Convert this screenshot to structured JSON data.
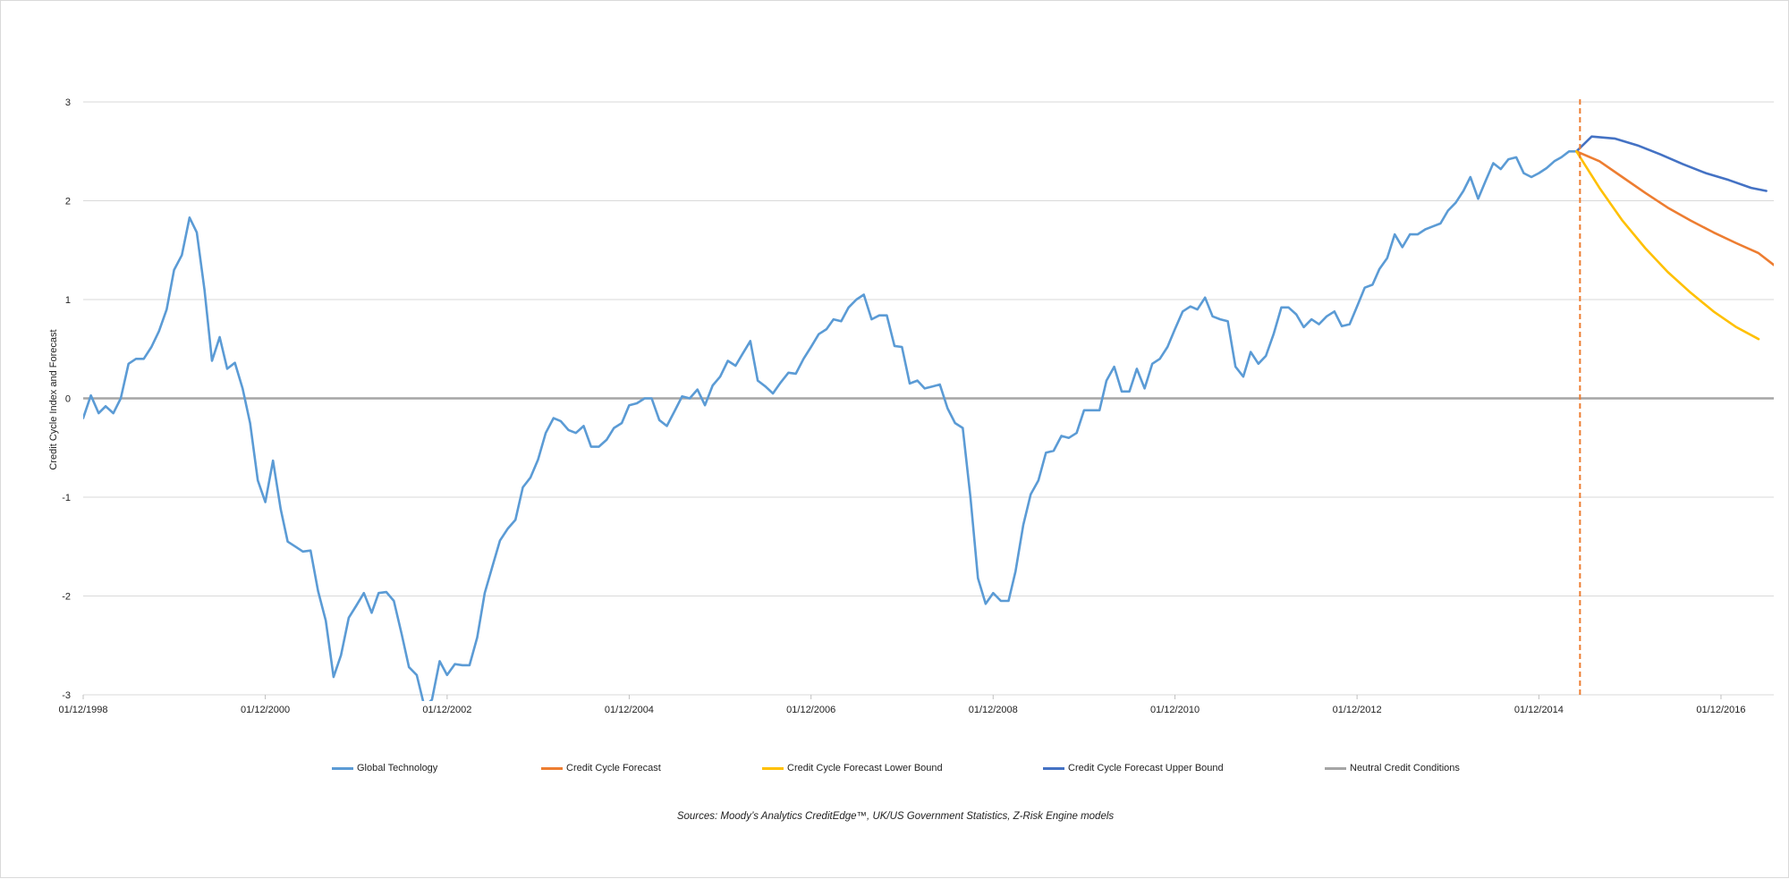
{
  "chart_data": {
    "type": "line",
    "ylabel": "Credit Cycle Index and Forecast",
    "ylim": [
      -3,
      3
    ],
    "y_ticks": [
      "3",
      "2",
      "1",
      "0",
      "-1",
      "-2",
      "-3"
    ],
    "x_range": [
      "1998-12-01",
      "2017-07-01"
    ],
    "x_ticks": [
      "01/12/1998",
      "01/12/2000",
      "01/12/2002",
      "01/12/2004",
      "01/12/2006",
      "01/12/2008",
      "01/12/2010",
      "01/12/2012",
      "01/12/2014",
      "01/12/2016"
    ],
    "grid": true,
    "legend_position": "bottom",
    "forecast_start": "2015-05-15",
    "series": [
      {
        "name": "Global Technology",
        "color": "#5B9BD5",
        "points": [
          [
            "1998-12-01",
            -0.2
          ],
          [
            "1999-01-01",
            0.03
          ],
          [
            "1999-02-01",
            -0.15
          ],
          [
            "1999-03-01",
            -0.08
          ],
          [
            "1999-04-01",
            -0.15
          ],
          [
            "1999-05-01",
            0.0
          ],
          [
            "1999-06-01",
            0.35
          ],
          [
            "1999-07-01",
            0.4
          ],
          [
            "1999-08-01",
            0.4
          ],
          [
            "1999-09-01",
            0.52
          ],
          [
            "1999-10-01",
            0.68
          ],
          [
            "1999-11-01",
            0.9
          ],
          [
            "1999-12-01",
            1.3
          ],
          [
            "2000-01-01",
            1.45
          ],
          [
            "2000-02-01",
            1.83
          ],
          [
            "2000-03-01",
            1.68
          ],
          [
            "2000-04-01",
            1.1
          ],
          [
            "2000-05-01",
            0.38
          ],
          [
            "2000-06-01",
            0.62
          ],
          [
            "2000-07-01",
            0.3
          ],
          [
            "2000-08-01",
            0.36
          ],
          [
            "2000-09-01",
            0.1
          ],
          [
            "2000-10-01",
            -0.25
          ],
          [
            "2000-11-01",
            -0.83
          ],
          [
            "2000-12-01",
            -1.05
          ],
          [
            "2001-01-01",
            -0.63
          ],
          [
            "2001-02-01",
            -1.12
          ],
          [
            "2001-03-01",
            -1.45
          ],
          [
            "2001-04-01",
            -1.5
          ],
          [
            "2001-05-01",
            -1.55
          ],
          [
            "2001-06-01",
            -1.54
          ],
          [
            "2001-07-01",
            -1.95
          ],
          [
            "2001-08-01",
            -2.25
          ],
          [
            "2001-09-01",
            -2.82
          ],
          [
            "2001-10-01",
            -2.6
          ],
          [
            "2001-11-01",
            -2.22
          ],
          [
            "2001-12-01",
            -2.1
          ],
          [
            "2002-01-01",
            -1.97
          ],
          [
            "2002-02-01",
            -2.17
          ],
          [
            "2002-03-01",
            -1.97
          ],
          [
            "2002-04-01",
            -1.96
          ],
          [
            "2002-05-01",
            -2.05
          ],
          [
            "2002-06-01",
            -2.38
          ],
          [
            "2002-07-01",
            -2.72
          ],
          [
            "2002-08-01",
            -2.8
          ],
          [
            "2002-09-01",
            -3.12
          ],
          [
            "2002-10-01",
            -3.05
          ],
          [
            "2002-11-01",
            -2.66
          ],
          [
            "2002-12-01",
            -2.8
          ],
          [
            "2003-01-01",
            -2.69
          ],
          [
            "2003-02-01",
            -2.7
          ],
          [
            "2003-03-01",
            -2.7
          ],
          [
            "2003-04-01",
            -2.42
          ],
          [
            "2003-05-01",
            -1.97
          ],
          [
            "2003-06-01",
            -1.7
          ],
          [
            "2003-07-01",
            -1.44
          ],
          [
            "2003-08-01",
            -1.32
          ],
          [
            "2003-09-01",
            -1.23
          ],
          [
            "2003-10-01",
            -0.9
          ],
          [
            "2003-11-01",
            -0.8
          ],
          [
            "2003-12-01",
            -0.62
          ],
          [
            "2004-01-01",
            -0.35
          ],
          [
            "2004-02-01",
            -0.2
          ],
          [
            "2004-03-01",
            -0.23
          ],
          [
            "2004-04-01",
            -0.32
          ],
          [
            "2004-05-01",
            -0.35
          ],
          [
            "2004-06-01",
            -0.28
          ],
          [
            "2004-07-01",
            -0.49
          ],
          [
            "2004-08-01",
            -0.49
          ],
          [
            "2004-09-01",
            -0.42
          ],
          [
            "2004-10-01",
            -0.3
          ],
          [
            "2004-11-01",
            -0.25
          ],
          [
            "2004-12-01",
            -0.07
          ],
          [
            "2005-01-01",
            -0.05
          ],
          [
            "2005-02-01",
            0.0
          ],
          [
            "2005-03-01",
            0.0
          ],
          [
            "2005-04-01",
            -0.22
          ],
          [
            "2005-05-01",
            -0.28
          ],
          [
            "2005-06-01",
            -0.13
          ],
          [
            "2005-07-01",
            0.02
          ],
          [
            "2005-08-01",
            0.0
          ],
          [
            "2005-09-01",
            0.09
          ],
          [
            "2005-10-01",
            -0.07
          ],
          [
            "2005-11-01",
            0.13
          ],
          [
            "2005-12-01",
            0.22
          ],
          [
            "2006-01-01",
            0.38
          ],
          [
            "2006-02-01",
            0.33
          ],
          [
            "2006-03-01",
            0.45
          ],
          [
            "2006-04-01",
            0.58
          ],
          [
            "2006-05-01",
            0.18
          ],
          [
            "2006-06-01",
            0.12
          ],
          [
            "2006-07-01",
            0.05
          ],
          [
            "2006-08-01",
            0.16
          ],
          [
            "2006-09-01",
            0.26
          ],
          [
            "2006-10-01",
            0.25
          ],
          [
            "2006-11-01",
            0.4
          ],
          [
            "2006-12-01",
            0.52
          ],
          [
            "2007-01-01",
            0.65
          ],
          [
            "2007-02-01",
            0.7
          ],
          [
            "2007-03-01",
            0.8
          ],
          [
            "2007-04-01",
            0.78
          ],
          [
            "2007-05-01",
            0.92
          ],
          [
            "2007-06-01",
            1.0
          ],
          [
            "2007-07-01",
            1.05
          ],
          [
            "2007-08-01",
            0.8
          ],
          [
            "2007-09-01",
            0.84
          ],
          [
            "2007-10-01",
            0.84
          ],
          [
            "2007-11-01",
            0.53
          ],
          [
            "2007-12-01",
            0.52
          ],
          [
            "2008-01-01",
            0.15
          ],
          [
            "2008-02-01",
            0.18
          ],
          [
            "2008-03-01",
            0.1
          ],
          [
            "2008-04-01",
            0.12
          ],
          [
            "2008-05-01",
            0.14
          ],
          [
            "2008-06-01",
            -0.1
          ],
          [
            "2008-07-01",
            -0.25
          ],
          [
            "2008-08-01",
            -0.3
          ],
          [
            "2008-09-01",
            -1.0
          ],
          [
            "2008-10-01",
            -1.82
          ],
          [
            "2008-11-01",
            -2.08
          ],
          [
            "2008-12-01",
            -1.97
          ],
          [
            "2009-01-01",
            -2.05
          ],
          [
            "2009-02-01",
            -2.05
          ],
          [
            "2009-03-01",
            -1.75
          ],
          [
            "2009-04-01",
            -1.28
          ],
          [
            "2009-05-01",
            -0.97
          ],
          [
            "2009-06-01",
            -0.83
          ],
          [
            "2009-07-01",
            -0.55
          ],
          [
            "2009-08-01",
            -0.53
          ],
          [
            "2009-09-01",
            -0.38
          ],
          [
            "2009-10-01",
            -0.4
          ],
          [
            "2009-11-01",
            -0.35
          ],
          [
            "2009-12-01",
            -0.12
          ],
          [
            "2010-01-01",
            -0.12
          ],
          [
            "2010-02-01",
            -0.12
          ],
          [
            "2010-03-01",
            0.18
          ],
          [
            "2010-04-01",
            0.32
          ],
          [
            "2010-05-01",
            0.07
          ],
          [
            "2010-06-01",
            0.07
          ],
          [
            "2010-07-01",
            0.3
          ],
          [
            "2010-08-01",
            0.1
          ],
          [
            "2010-09-01",
            0.35
          ],
          [
            "2010-10-01",
            0.4
          ],
          [
            "2010-11-01",
            0.52
          ],
          [
            "2010-12-01",
            0.7
          ],
          [
            "2011-01-01",
            0.88
          ],
          [
            "2011-02-01",
            0.93
          ],
          [
            "2011-03-01",
            0.9
          ],
          [
            "2011-04-01",
            1.02
          ],
          [
            "2011-05-01",
            0.83
          ],
          [
            "2011-06-01",
            0.8
          ],
          [
            "2011-07-01",
            0.78
          ],
          [
            "2011-08-01",
            0.32
          ],
          [
            "2011-09-01",
            0.22
          ],
          [
            "2011-10-01",
            0.47
          ],
          [
            "2011-11-01",
            0.35
          ],
          [
            "2011-12-01",
            0.43
          ],
          [
            "2012-01-01",
            0.65
          ],
          [
            "2012-02-01",
            0.92
          ],
          [
            "2012-03-01",
            0.92
          ],
          [
            "2012-04-01",
            0.85
          ],
          [
            "2012-05-01",
            0.72
          ],
          [
            "2012-06-01",
            0.8
          ],
          [
            "2012-07-01",
            0.75
          ],
          [
            "2012-08-01",
            0.83
          ],
          [
            "2012-09-01",
            0.88
          ],
          [
            "2012-10-01",
            0.73
          ],
          [
            "2012-11-01",
            0.75
          ],
          [
            "2012-12-01",
            0.93
          ],
          [
            "2013-01-01",
            1.12
          ],
          [
            "2013-02-01",
            1.15
          ],
          [
            "2013-03-01",
            1.31
          ],
          [
            "2013-04-01",
            1.42
          ],
          [
            "2013-05-01",
            1.66
          ],
          [
            "2013-06-01",
            1.53
          ],
          [
            "2013-07-01",
            1.66
          ],
          [
            "2013-08-01",
            1.66
          ],
          [
            "2013-09-01",
            1.71
          ],
          [
            "2013-10-01",
            1.74
          ],
          [
            "2013-11-01",
            1.77
          ],
          [
            "2013-12-01",
            1.9
          ],
          [
            "2014-01-01",
            1.98
          ],
          [
            "2014-02-01",
            2.1
          ],
          [
            "2014-03-01",
            2.24
          ],
          [
            "2014-04-01",
            2.02
          ],
          [
            "2014-05-01",
            2.2
          ],
          [
            "2014-06-01",
            2.38
          ],
          [
            "2014-07-01",
            2.32
          ],
          [
            "2014-08-01",
            2.42
          ],
          [
            "2014-09-01",
            2.44
          ],
          [
            "2014-10-01",
            2.28
          ],
          [
            "2014-11-01",
            2.24
          ],
          [
            "2014-12-01",
            2.28
          ],
          [
            "2015-01-01",
            2.33
          ],
          [
            "2015-02-01",
            2.4
          ],
          [
            "2015-03-01",
            2.44
          ],
          [
            "2015-04-01",
            2.5
          ],
          [
            "2015-05-01",
            2.5
          ]
        ]
      },
      {
        "name": "Credit Cycle Forecast",
        "color": "#ED7D31",
        "points": [
          [
            "2015-05-01",
            2.5
          ],
          [
            "2015-08-01",
            2.4
          ],
          [
            "2015-11-01",
            2.24
          ],
          [
            "2016-02-01",
            2.08
          ],
          [
            "2016-05-01",
            1.93
          ],
          [
            "2016-08-01",
            1.8
          ],
          [
            "2016-11-01",
            1.68
          ],
          [
            "2017-02-01",
            1.57
          ],
          [
            "2017-05-01",
            1.47
          ],
          [
            "2017-07-01",
            1.35
          ]
        ]
      },
      {
        "name": "Credit Cycle Forecast Lower Bound",
        "color": "#FFC000",
        "points": [
          [
            "2015-05-01",
            2.5
          ],
          [
            "2015-08-01",
            2.13
          ],
          [
            "2015-11-01",
            1.8
          ],
          [
            "2016-02-01",
            1.52
          ],
          [
            "2016-05-01",
            1.28
          ],
          [
            "2016-08-01",
            1.07
          ],
          [
            "2016-11-01",
            0.88
          ],
          [
            "2017-02-01",
            0.72
          ],
          [
            "2017-05-01",
            0.6
          ]
        ]
      },
      {
        "name": "Credit Cycle Forecast Upper Bound",
        "color": "#4472C4",
        "points": [
          [
            "2015-05-01",
            2.5
          ],
          [
            "2015-07-01",
            2.65
          ],
          [
            "2015-10-01",
            2.63
          ],
          [
            "2016-01-01",
            2.56
          ],
          [
            "2016-04-01",
            2.47
          ],
          [
            "2016-07-01",
            2.37
          ],
          [
            "2016-10-01",
            2.28
          ],
          [
            "2017-01-01",
            2.21
          ],
          [
            "2017-04-01",
            2.13
          ],
          [
            "2017-06-01",
            2.1
          ]
        ]
      },
      {
        "name": "Neutral Credit Conditions",
        "color": "#A5A5A5",
        "points": [
          [
            "1998-12-01",
            0
          ],
          [
            "2017-07-01",
            0
          ]
        ]
      }
    ]
  },
  "legend": [
    {
      "label": "Global Technology",
      "color": "#5B9BD5"
    },
    {
      "label": "Credit Cycle Forecast",
      "color": "#ED7D31"
    },
    {
      "label": "Credit Cycle Forecast Lower Bound",
      "color": "#FFC000"
    },
    {
      "label": "Credit Cycle Forecast Upper Bound",
      "color": "#4472C4"
    },
    {
      "label": "Neutral Credit Conditions",
      "color": "#A5A5A5"
    }
  ],
  "source_text": "Sources: Moody’s Analytics CreditEdge™, UK/US Government Statistics, Z-Risk Engine models"
}
